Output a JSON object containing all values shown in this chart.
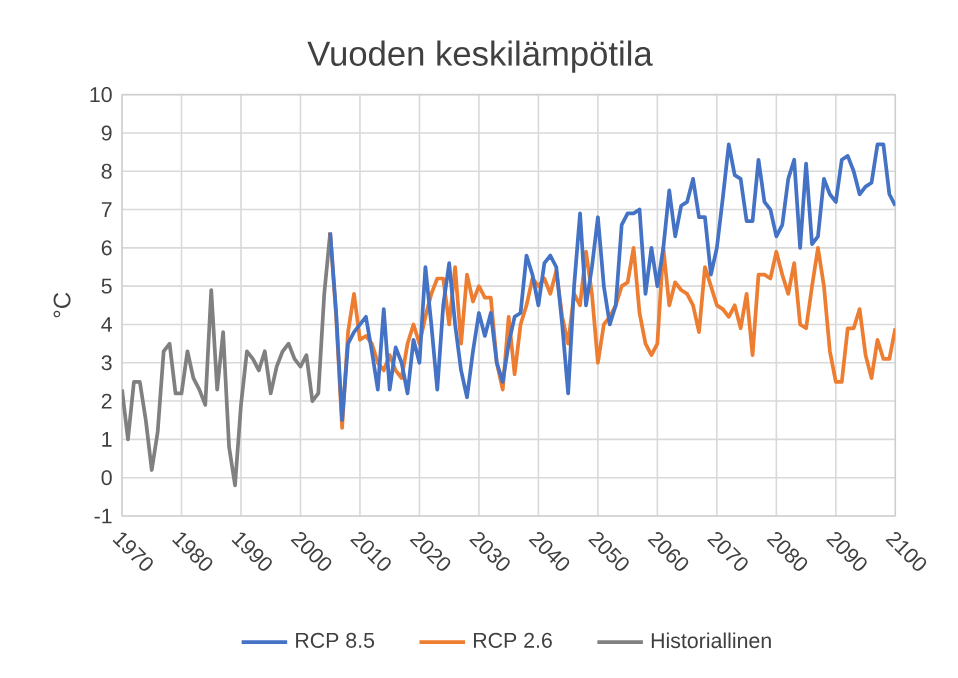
{
  "chart_data": {
    "type": "line",
    "title": "Vuoden keskilämpötila",
    "ylabel": "°C",
    "xlim": [
      1970,
      2100
    ],
    "xticks": [
      1970,
      1980,
      1990,
      2000,
      2010,
      2020,
      2030,
      2040,
      2050,
      2060,
      2070,
      2080,
      2090,
      2100
    ],
    "ylim": [
      -1,
      10
    ],
    "yticks": [
      -1,
      0,
      1,
      2,
      3,
      4,
      5,
      6,
      7,
      8,
      9,
      10
    ],
    "grid": true,
    "legend": "bottom",
    "marker": "none",
    "line_style": "solid",
    "series": [
      {
        "name": "RCP 8.5",
        "color": "#4472c4",
        "x": [
          2005,
          2006,
          2007,
          2008,
          2009,
          2010,
          2011,
          2012,
          2013,
          2014,
          2015,
          2016,
          2017,
          2018,
          2019,
          2020,
          2021,
          2022,
          2023,
          2024,
          2025,
          2026,
          2027,
          2028,
          2029,
          2030,
          2031,
          2032,
          2033,
          2034,
          2035,
          2036,
          2037,
          2038,
          2039,
          2040,
          2041,
          2042,
          2043,
          2044,
          2045,
          2046,
          2047,
          2048,
          2049,
          2050,
          2051,
          2052,
          2053,
          2054,
          2055,
          2056,
          2057,
          2058,
          2059,
          2060,
          2061,
          2062,
          2063,
          2064,
          2065,
          2066,
          2067,
          2068,
          2069,
          2070,
          2071,
          2072,
          2073,
          2074,
          2075,
          2076,
          2077,
          2078,
          2079,
          2080,
          2081,
          2082,
          2083,
          2084,
          2085,
          2086,
          2087,
          2088,
          2089,
          2090,
          2091,
          2092,
          2093,
          2094,
          2095,
          2096,
          2097,
          2098,
          2099,
          2100
        ],
        "values": [
          6.4,
          4.3,
          1.5,
          3.5,
          3.8,
          4.0,
          4.2,
          3.3,
          2.3,
          4.4,
          2.3,
          3.4,
          3.0,
          2.2,
          3.6,
          3.0,
          5.5,
          4.0,
          2.3,
          4.5,
          5.6,
          4.0,
          2.8,
          2.1,
          3.3,
          4.3,
          3.7,
          4.3,
          3.0,
          2.5,
          3.5,
          4.2,
          4.3,
          5.8,
          5.3,
          4.5,
          5.6,
          5.8,
          5.5,
          4.0,
          2.2,
          5.0,
          6.9,
          4.5,
          5.5,
          6.8,
          5.0,
          4.0,
          4.5,
          6.6,
          6.9,
          6.9,
          7.0,
          4.8,
          6.0,
          5.0,
          6.0,
          7.5,
          6.3,
          7.1,
          7.2,
          7.8,
          6.8,
          6.8,
          5.3,
          6.0,
          7.3,
          8.7,
          7.9,
          7.8,
          6.7,
          6.7,
          8.3,
          7.2,
          7.0,
          6.3,
          6.6,
          7.8,
          8.3,
          6.0,
          8.2,
          6.1,
          6.3,
          7.8,
          7.4,
          7.2,
          8.3,
          8.4,
          8.0,
          7.4,
          7.6,
          7.7,
          8.7,
          8.7,
          7.4,
          7.1
        ]
      },
      {
        "name": "RCP 2.6",
        "color": "#ed7d31",
        "x": [
          2005,
          2006,
          2007,
          2008,
          2009,
          2010,
          2011,
          2012,
          2013,
          2014,
          2015,
          2016,
          2017,
          2018,
          2019,
          2020,
          2021,
          2022,
          2023,
          2024,
          2025,
          2026,
          2027,
          2028,
          2029,
          2030,
          2031,
          2032,
          2033,
          2034,
          2035,
          2036,
          2037,
          2038,
          2039,
          2040,
          2041,
          2042,
          2043,
          2044,
          2045,
          2046,
          2047,
          2048,
          2049,
          2050,
          2051,
          2052,
          2053,
          2054,
          2055,
          2056,
          2057,
          2058,
          2059,
          2060,
          2061,
          2062,
          2063,
          2064,
          2065,
          2066,
          2067,
          2068,
          2069,
          2070,
          2071,
          2072,
          2073,
          2074,
          2075,
          2076,
          2077,
          2078,
          2079,
          2080,
          2081,
          2082,
          2083,
          2084,
          2085,
          2086,
          2087,
          2088,
          2089,
          2090,
          2091,
          2092,
          2093,
          2094,
          2095,
          2096,
          2097,
          2098,
          2099,
          2100
        ],
        "values": [
          6.4,
          4.2,
          1.3,
          3.8,
          4.8,
          3.6,
          3.7,
          3.5,
          3.0,
          2.8,
          3.2,
          2.8,
          2.6,
          3.5,
          4.0,
          3.5,
          4.2,
          4.8,
          5.2,
          5.2,
          4.0,
          5.5,
          3.5,
          5.3,
          4.6,
          5.0,
          4.7,
          4.7,
          3.0,
          2.3,
          4.2,
          2.7,
          4.0,
          4.5,
          5.2,
          5.0,
          5.2,
          4.8,
          5.4,
          4.2,
          3.5,
          4.8,
          4.5,
          5.9,
          4.8,
          3.0,
          4.0,
          4.2,
          4.5,
          5.0,
          5.1,
          6.0,
          4.3,
          3.5,
          3.2,
          3.5,
          6.0,
          4.5,
          5.1,
          4.9,
          4.8,
          4.5,
          3.8,
          5.5,
          5.0,
          4.5,
          4.4,
          4.2,
          4.5,
          3.9,
          4.8,
          3.2,
          5.3,
          5.3,
          5.2,
          5.9,
          5.3,
          4.8,
          5.6,
          4.0,
          3.9,
          5.0,
          6.0,
          5.0,
          3.3,
          2.5,
          2.5,
          3.9,
          3.9,
          4.4,
          3.2,
          2.6,
          3.6,
          3.1,
          3.1,
          3.9
        ]
      },
      {
        "name": "Historiallinen",
        "color": "#808080",
        "x": [
          1970,
          1971,
          1972,
          1973,
          1974,
          1975,
          1976,
          1977,
          1978,
          1979,
          1980,
          1981,
          1982,
          1983,
          1984,
          1985,
          1986,
          1987,
          1988,
          1989,
          1990,
          1991,
          1992,
          1993,
          1994,
          1995,
          1996,
          1997,
          1998,
          1999,
          2000,
          2001,
          2002,
          2003,
          2004,
          2005
        ],
        "values": [
          2.3,
          1.0,
          2.5,
          2.5,
          1.5,
          0.2,
          1.2,
          3.3,
          3.5,
          2.2,
          2.2,
          3.3,
          2.6,
          2.3,
          1.9,
          4.9,
          2.3,
          3.8,
          0.8,
          -0.2,
          1.9,
          3.3,
          3.1,
          2.8,
          3.3,
          2.2,
          2.9,
          3.3,
          3.5,
          3.1,
          2.9,
          3.2,
          2.0,
          2.2,
          4.8,
          6.4
        ]
      }
    ]
  }
}
